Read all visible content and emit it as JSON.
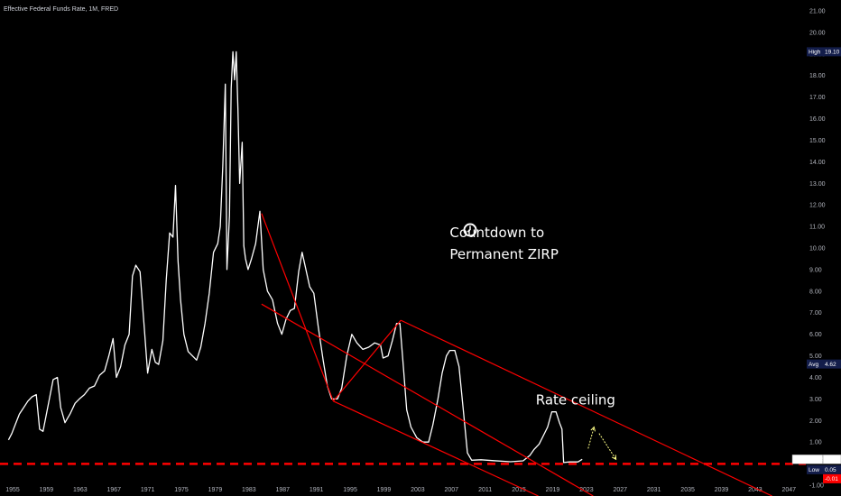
{
  "chart_data": {
    "type": "line",
    "title": "Effective Federal Funds Rate, 1M, FRED",
    "xlabel": "",
    "ylabel": "",
    "ylim": [
      -1.5,
      21.5
    ],
    "xlim": [
      1953.5,
      2049
    ],
    "x_ticks": [
      "1955",
      "1959",
      "1963",
      "1967",
      "1971",
      "1975",
      "1979",
      "1983",
      "1987",
      "1991",
      "1995",
      "1999",
      "2003",
      "2007",
      "2011",
      "2015",
      "2019",
      "2023",
      "2027",
      "2031",
      "2035",
      "2039",
      "2043",
      "2047"
    ],
    "y_ticks": [
      "-1.00",
      "1.00",
      "2.00",
      "3.00",
      "4.00",
      "5.00",
      "6.00",
      "7.00",
      "8.00",
      "9.00",
      "10.00",
      "11.00",
      "12.00",
      "13.00",
      "14.00",
      "15.00",
      "16.00",
      "17.00",
      "18.00",
      "19.00",
      "20.00",
      "21.00"
    ],
    "grid": false,
    "series": [
      {
        "name": "FEDFUNDS",
        "color": "#ffffff",
        "x": [
          1954.5,
          1954.9,
          1955.3,
          1955.8,
          1956.3,
          1956.8,
          1957.3,
          1957.8,
          1958.2,
          1958.6,
          1959.2,
          1959.8,
          1960.3,
          1960.7,
          1961.2,
          1961.8,
          1962.4,
          1962.9,
          1963.5,
          1964.1,
          1964.7,
          1965.3,
          1965.9,
          1966.4,
          1966.9,
          1967.3,
          1967.8,
          1968.3,
          1968.8,
          1969.2,
          1969.6,
          1970.1,
          1970.6,
          1971.0,
          1971.5,
          1971.9,
          1972.3,
          1972.8,
          1973.2,
          1973.6,
          1974.0,
          1974.3,
          1974.6,
          1974.9,
          1975.3,
          1975.8,
          1976.3,
          1976.8,
          1977.3,
          1977.8,
          1978.3,
          1978.8,
          1979.3,
          1979.6,
          1979.9,
          1980.2,
          1980.4,
          1980.7,
          1980.9,
          1981.1,
          1981.3,
          1981.5,
          1981.7,
          1981.9,
          1982.2,
          1982.4,
          1982.6,
          1982.9,
          1983.3,
          1983.8,
          1984.3,
          1984.7,
          1985.2,
          1985.8,
          1986.4,
          1986.9,
          1987.4,
          1987.9,
          1988.4,
          1988.9,
          1989.3,
          1989.7,
          1990.2,
          1990.7,
          1991.2,
          1991.8,
          1992.3,
          1992.8,
          1993.5,
          1994.0,
          1994.6,
          1995.2,
          1995.8,
          1996.5,
          1997.2,
          1997.9,
          1998.6,
          1998.9,
          1999.5,
          2000.0,
          2000.5,
          2000.9,
          2001.3,
          2001.7,
          2002.2,
          2002.9,
          2003.6,
          2004.3,
          2004.8,
          2005.4,
          2005.9,
          2006.4,
          2006.8,
          2007.4,
          2007.9,
          2008.4,
          2008.9,
          2009.4,
          2010.5,
          2012.0,
          2014.0,
          2015.5,
          2016.3,
          2016.8,
          2017.4,
          2017.9,
          2018.4,
          2018.9,
          2019.4,
          2019.8,
          2020.1,
          2020.3,
          2021.0,
          2022.0,
          2022.5
        ],
        "y": [
          1.1,
          1.4,
          1.8,
          2.3,
          2.6,
          2.9,
          3.1,
          3.2,
          1.6,
          1.5,
          2.7,
          3.9,
          4.0,
          2.6,
          1.9,
          2.3,
          2.8,
          3.0,
          3.2,
          3.5,
          3.6,
          4.1,
          4.3,
          5.0,
          5.8,
          4.0,
          4.5,
          5.5,
          6.0,
          8.7,
          9.2,
          8.9,
          6.3,
          4.2,
          5.3,
          4.7,
          4.6,
          5.7,
          8.5,
          10.7,
          10.5,
          12.9,
          9.4,
          7.6,
          6.0,
          5.2,
          5.0,
          4.8,
          5.4,
          6.5,
          7.9,
          9.8,
          10.2,
          11.0,
          13.8,
          17.6,
          9.0,
          11.5,
          17.4,
          19.1,
          17.8,
          19.1,
          16.4,
          13.0,
          14.9,
          10.1,
          9.5,
          9.0,
          9.5,
          10.2,
          11.7,
          9.0,
          8.0,
          7.6,
          6.5,
          6.0,
          6.7,
          7.1,
          7.2,
          8.9,
          9.8,
          9.1,
          8.2,
          7.9,
          6.4,
          4.8,
          3.6,
          3.0,
          3.0,
          3.5,
          5.0,
          6.0,
          5.6,
          5.3,
          5.4,
          5.6,
          5.5,
          4.9,
          5.0,
          5.7,
          6.5,
          6.5,
          4.5,
          2.5,
          1.7,
          1.2,
          1.0,
          1.0,
          1.8,
          3.0,
          4.2,
          5.0,
          5.25,
          5.25,
          4.5,
          2.5,
          0.5,
          0.16,
          0.18,
          0.14,
          0.09,
          0.13,
          0.38,
          0.66,
          0.91,
          1.3,
          1.7,
          2.4,
          2.4,
          1.9,
          1.6,
          0.05,
          0.08,
          0.08,
          0.2
        ]
      }
    ],
    "reference_lines": [
      {
        "y": -0.01,
        "color": "#ff0000",
        "style": "dashed"
      }
    ],
    "trend_lines": [
      {
        "x": [
          1984.5,
          1993.0
        ],
        "y": [
          11.6,
          2.9
        ],
        "color": "#ff0000"
      },
      {
        "x": [
          1993.0,
          2001.0
        ],
        "y": [
          2.9,
          6.65
        ],
        "color": "#ff0000"
      },
      {
        "x": [
          2001.0,
          2045.0
        ],
        "y": [
          6.65,
          -1.5
        ],
        "color": "#ff0000"
      },
      {
        "x": [
          1984.5,
          2023.8
        ],
        "y": [
          7.4,
          -1.5
        ],
        "color": "#ff0000"
      },
      {
        "x": [
          1993.0,
          2017.3
        ],
        "y": [
          2.9,
          -1.5
        ],
        "color": "#ff0000"
      }
    ],
    "arrows": [
      {
        "x": [
          2023.2,
          2023.9
        ],
        "y": [
          0.7,
          1.7
        ],
        "color": "#ffff88"
      },
      {
        "x": [
          2024.5,
          2026.5
        ],
        "y": [
          1.4,
          0.2
        ],
        "color": "#ffff88"
      }
    ],
    "annotations": [
      {
        "text": "Countdown to",
        "x": 2006.8,
        "y": 10.5
      },
      {
        "text": "Permanent ZIRP",
        "x": 2006.8,
        "y": 9.5
      },
      {
        "text": "Rate ceiling",
        "x": 2017.0,
        "y": 2.75,
        "color": "#ff3333"
      }
    ],
    "price_tags": [
      {
        "label": "High",
        "value": "19.10",
        "y": 19.1,
        "bg": "#131d4a"
      },
      {
        "label": "Avg",
        "value": "4.62",
        "y": 4.62,
        "bg": "#131d4a"
      },
      {
        "label": "FEDFUNDS",
        "value": "0.20",
        "y": 0.2,
        "bg": "#ffffff",
        "fg": "#000000"
      },
      {
        "label": "Low",
        "value": "0.05",
        "y": -0.28,
        "bg": "#131d4a"
      },
      {
        "label": "",
        "value": "-0.01",
        "y": -0.7,
        "bg": "#ff0000"
      }
    ]
  }
}
